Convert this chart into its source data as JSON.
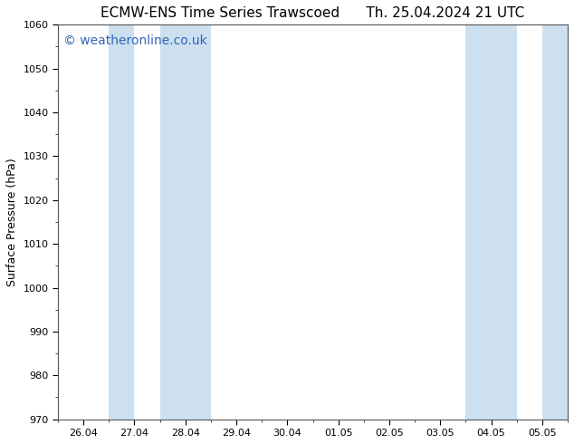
{
  "title_left": "ECMW-ENS Time Series Trawscoed",
  "title_right": "Th. 25.04.2024 21 UTC",
  "ylabel": "Surface Pressure (hPa)",
  "ylim": [
    970,
    1060
  ],
  "yticks": [
    970,
    980,
    990,
    1000,
    1010,
    1020,
    1030,
    1040,
    1050,
    1060
  ],
  "xlabel_ticks": [
    "26.04",
    "27.04",
    "28.04",
    "29.04",
    "30.04",
    "01.05",
    "02.05",
    "03.05",
    "04.05",
    "05.05"
  ],
  "x_values": [
    0,
    1,
    2,
    3,
    4,
    5,
    6,
    7,
    8,
    9
  ],
  "xlim": [
    -0.5,
    9.5
  ],
  "background_color": "#ffffff",
  "plot_bg_color": "#ffffff",
  "shaded_bands": [
    {
      "x_start": 0.5,
      "x_end": 1.0,
      "color": "#cce0f0"
    },
    {
      "x_start": 1.5,
      "x_end": 2.5,
      "color": "#cce0f0"
    },
    {
      "x_start": 7.5,
      "x_end": 8.5,
      "color": "#cce0f0"
    },
    {
      "x_start": 9.0,
      "x_end": 9.5,
      "color": "#cce0f0"
    }
  ],
  "watermark": "© weatheronline.co.uk",
  "watermark_color": "#3366bb",
  "watermark_fontsize": 10,
  "title_fontsize": 11,
  "ylabel_fontsize": 9,
  "tick_fontsize": 8,
  "spine_color": "#555555",
  "shaded_color": "#cce0f0"
}
